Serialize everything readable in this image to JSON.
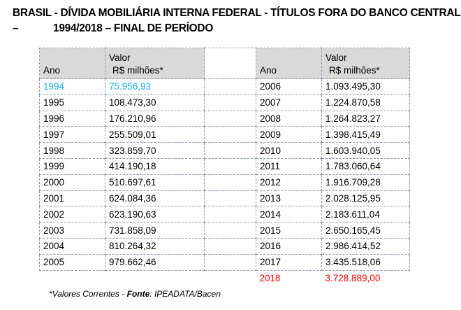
{
  "title": {
    "line1": "BRASIL - DÍVIDA MOBILIÁRIA INTERNA FEDERAL - TÍTULOS FORA DO BANCO CENTRAL",
    "line2_dash": "–",
    "line2": "1994/2018   – FINAL DE PERÍODO"
  },
  "headers": {
    "ano": "Ano",
    "valor1": "Valor",
    "valor2": "R$ milhões*"
  },
  "left": [
    [
      "1994",
      "75.956,93"
    ],
    [
      "1995",
      "108.473,30"
    ],
    [
      "1996",
      "176.210,96"
    ],
    [
      "1997",
      "255.509,01"
    ],
    [
      "1998",
      "323.859,70"
    ],
    [
      "1999",
      "414.190,18"
    ],
    [
      "2000",
      "510.697,61"
    ],
    [
      "2001",
      "624.084,36"
    ],
    [
      "2002",
      "623.190,63"
    ],
    [
      "2003",
      "731.858,09"
    ],
    [
      "2004",
      "810.264,32"
    ],
    [
      "2005",
      "979.662,46"
    ]
  ],
  "right": [
    [
      "2006",
      "1.093.495,30"
    ],
    [
      "2007",
      "1.224.870,58"
    ],
    [
      "2008",
      "1.264.823,27"
    ],
    [
      "2009",
      "1.398.415,49"
    ],
    [
      "2010",
      "1.603.940,05"
    ],
    [
      "2011",
      "1.783.060,64"
    ],
    [
      "2012",
      "1.916.709,28"
    ],
    [
      "2013",
      "2.028.125,95"
    ],
    [
      "2014",
      "2.183.611,04"
    ],
    [
      "2015",
      "2.650.165,45"
    ],
    [
      "2016",
      "2.986.414,52"
    ],
    [
      "2017",
      "3.435.518,06"
    ],
    [
      "2018",
      "3.728.889,00"
    ]
  ],
  "footnote": {
    "prefix": "*Valores Correntes - ",
    "bold": "Fonte",
    "suffix": ": IPEADATA/Bacen"
  },
  "colors": {
    "highlight_first": "#1ab0f0",
    "highlight_last": "#ff0000",
    "header_bg": "#d9d9d9"
  }
}
